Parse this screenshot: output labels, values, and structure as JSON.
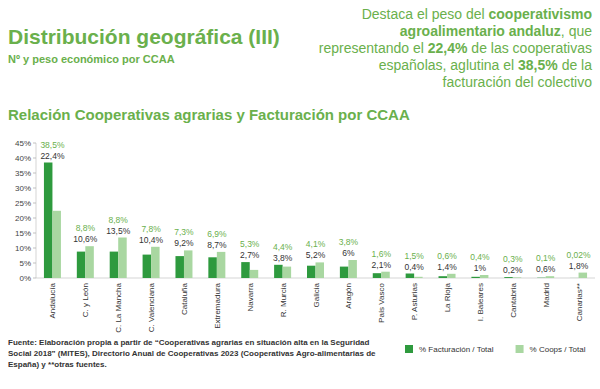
{
  "chart_data": {
    "type": "bar",
    "title": "Distribución geográfica (III)",
    "subtitle": "Nº y peso económico por CCAA",
    "callout": [
      "Destaca el peso del ",
      "cooperativismo agroalimentario andaluz",
      ", que representando el ",
      "22,4%",
      " de las cooperativas españolas, aglutina el ",
      "38,5%",
      " de la facturación del colectivo"
    ],
    "chart_title": "Relación Cooperativas agrarias y Facturación por CCAA",
    "source": [
      "Fuente: Elaboración propia a partir de “Cooperativas agrarias en situación alta en la Seguridad",
      "Social 2018” (MITES), Directorio Anual de Cooperativas 2023 (Cooperativas Agro-alimentarias de",
      "España) y **otras fuentes."
    ],
    "categories": [
      "Andalucía",
      "C. y León",
      "C. La Mancha",
      "C. Valenciana",
      "Cataluña",
      "Extremadura",
      "Navarra",
      "R. Murcia",
      "Galicia",
      "Aragón",
      "País Vasco",
      "P. Asturias",
      "La Rioja",
      "I. Baleares",
      "Cantabria",
      "Madrid",
      "Canarias**"
    ],
    "series": [
      {
        "name": "% Facturación / Total",
        "color": "#2e9a3e",
        "values": [
          38.5,
          8.8,
          8.8,
          7.8,
          7.3,
          6.9,
          5.3,
          4.4,
          4.1,
          3.8,
          1.6,
          1.5,
          0.6,
          0.4,
          0.3,
          0.1,
          0.02
        ],
        "value_labels": [
          "38,5%",
          "8,8%",
          "8,8%",
          "7,8%",
          "7,3%",
          "6,9%",
          "5,3%",
          "4,4%",
          "4,1%",
          "3,8%",
          "1,6%",
          "1,5%",
          "0,6%",
          "0,4%",
          "0,3%",
          "0,1%",
          "0,02%"
        ]
      },
      {
        "name": "% Coops / Total",
        "color": "#a9d7a1",
        "values": [
          22.4,
          10.6,
          13.5,
          10.4,
          9.2,
          8.7,
          2.7,
          3.8,
          5.2,
          6,
          2.1,
          0.4,
          1.4,
          1,
          0.2,
          0.6,
          1.8
        ],
        "value_labels": [
          "22,4%",
          "10,6%",
          "13,5%",
          "10,4%",
          "9,2%",
          "8,7%",
          "2,7%",
          "3,8%",
          "5,2%",
          "6%",
          "2,1%",
          "0,4%",
          "1,4%",
          "1%",
          "0,2%",
          "0,6%",
          "1,8%"
        ]
      }
    ],
    "ylim": [
      0,
      45
    ],
    "yticks": [
      {
        "value": 0,
        "label": "0%"
      },
      {
        "value": 5,
        "label": "5%"
      },
      {
        "value": 10,
        "label": "10%"
      },
      {
        "value": 15,
        "label": "15%"
      },
      {
        "value": 20,
        "label": "20%"
      },
      {
        "value": 25,
        "label": "25%"
      },
      {
        "value": 30,
        "label": "30%"
      },
      {
        "value": 35,
        "label": "35%"
      },
      {
        "value": 40,
        "label": "40%"
      },
      {
        "value": 45,
        "label": "45%"
      }
    ],
    "grid": false,
    "data_labels": true,
    "legend": "bottom-right"
  }
}
